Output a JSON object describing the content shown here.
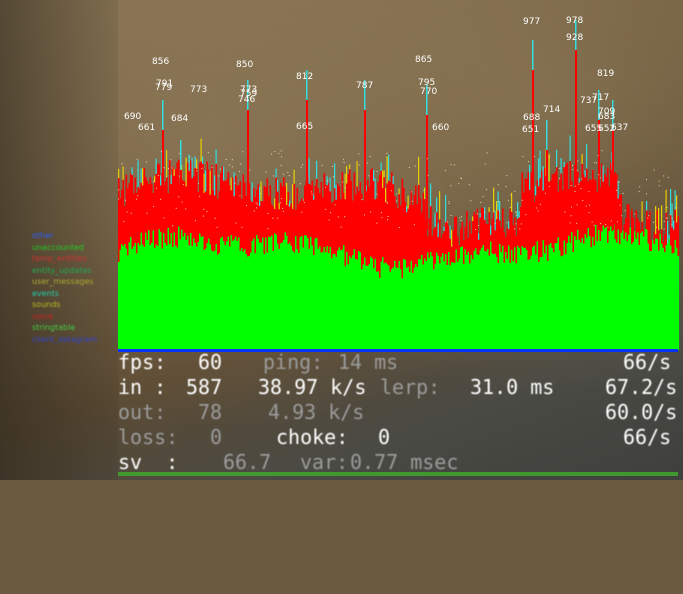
{
  "legend": [
    {
      "label": "other",
      "color": "#2b5cff"
    },
    {
      "label": "unaccounted",
      "color": "#22cc22"
    },
    {
      "label": "temp_entities",
      "color": "#cc3333"
    },
    {
      "label": "entity_updates",
      "color": "#22aa55"
    },
    {
      "label": "user_messages",
      "color": "#aaaa33"
    },
    {
      "label": "events",
      "color": "#22ccaa"
    },
    {
      "label": "sounds",
      "color": "#bbbb22"
    },
    {
      "label": "voice",
      "color": "#cc2222"
    },
    {
      "label": "stringtable",
      "color": "#44cc44"
    },
    {
      "label": "client_datagram",
      "color": "#3344cc"
    }
  ],
  "peaks": [
    {
      "text": "856"
    },
    {
      "text": "791"
    },
    {
      "text": "779"
    },
    {
      "text": "690"
    },
    {
      "text": "661"
    },
    {
      "text": "684"
    },
    {
      "text": "773"
    },
    {
      "text": "850"
    },
    {
      "text": "773"
    },
    {
      "text": "759"
    },
    {
      "text": "746"
    },
    {
      "text": "812"
    },
    {
      "text": "665"
    },
    {
      "text": "787"
    },
    {
      "text": "865"
    },
    {
      "text": "795"
    },
    {
      "text": "770"
    },
    {
      "text": "660"
    },
    {
      "text": "977"
    },
    {
      "text": "978"
    },
    {
      "text": "928"
    },
    {
      "text": "819"
    },
    {
      "text": "688"
    },
    {
      "text": "651"
    },
    {
      "text": "714"
    },
    {
      "text": "737"
    },
    {
      "text": "717"
    },
    {
      "text": "709"
    },
    {
      "text": "683"
    },
    {
      "text": "655"
    },
    {
      "text": "652"
    },
    {
      "text": "637"
    }
  ],
  "netgraph": {
    "fps_label": "fps:",
    "fps_value": "60",
    "ping_label": "ping:",
    "ping_value": "14 ms",
    "fps_rate": "66/s",
    "in_label": "in :",
    "in_bytes": "587",
    "in_rate": "38.97 k/s",
    "lerp_label": "lerp:",
    "lerp_value": "31.0 ms",
    "in_updates": "67.2/s",
    "out_label": "out:",
    "out_bytes": "78",
    "out_rate": "4.93 k/s",
    "out_updates": "60.0/s",
    "loss_label": "loss:",
    "loss_value": "0",
    "choke_label": "choke:",
    "choke_value": "0",
    "loss_rate": "66/s",
    "sv_label": "sv  :",
    "sv_value": "66.7",
    "var_label": "var:",
    "var_value": "0.77 msec"
  },
  "colors": {
    "green": "#00ff00",
    "red": "#ff0000",
    "cyan": "#33dddd",
    "yellow": "#e8d000",
    "blue": "#0033ff"
  }
}
